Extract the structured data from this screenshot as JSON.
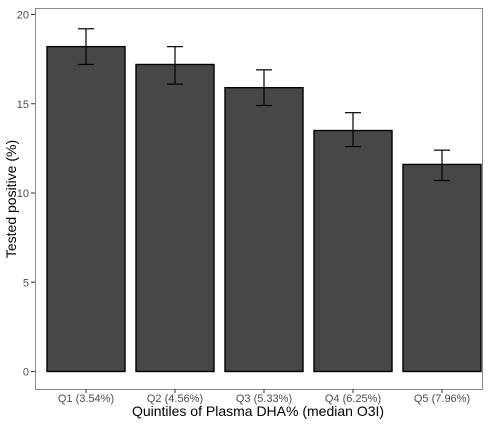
{
  "chart_data": {
    "type": "bar",
    "title": "",
    "xlabel": "Quintiles of Plasma DHA% (median O3I)",
    "ylabel": "Tested positive (%)",
    "categories": [
      "Q1 (3.54%)",
      "Q2 (4.56%)",
      "Q3 (5.33%)",
      "Q4 (6.25%)",
      "Q5 (7.96%)"
    ],
    "values": [
      18.2,
      17.2,
      15.9,
      13.5,
      11.6
    ],
    "error_low": [
      17.2,
      16.1,
      14.9,
      12.6,
      10.7
    ],
    "error_high": [
      19.2,
      18.2,
      16.9,
      14.5,
      12.4
    ],
    "ylim": [
      0,
      20
    ],
    "yticks": [
      0,
      5,
      10,
      15,
      20
    ],
    "grid": false,
    "legend": "none",
    "bar_color": "#474747"
  }
}
